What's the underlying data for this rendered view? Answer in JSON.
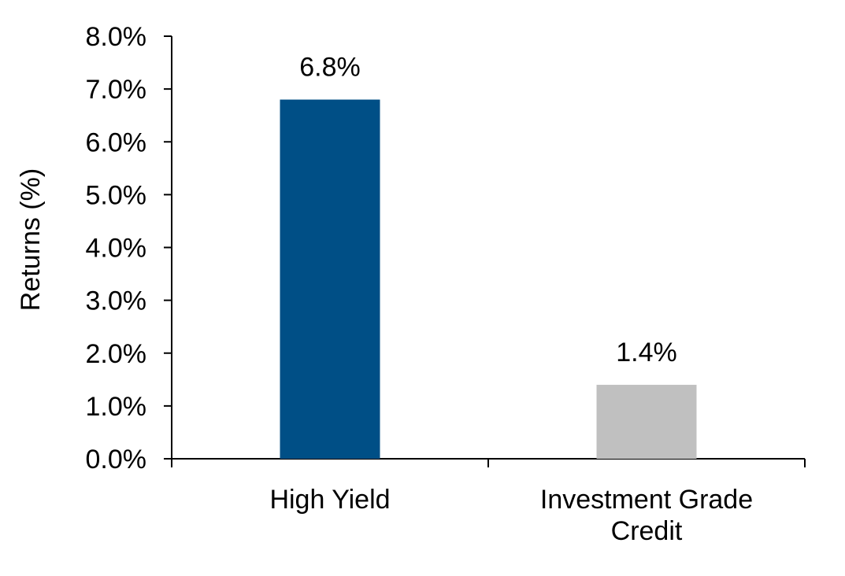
{
  "chart_data": {
    "type": "bar",
    "categories": [
      [
        "High Yield"
      ],
      [
        "Investment Grade",
        "Credit"
      ]
    ],
    "values": [
      6.8,
      1.4
    ],
    "data_labels": [
      "6.8%",
      "1.4%"
    ],
    "colors": [
      "#004f86",
      "#c0c0c0"
    ],
    "ylabel": "Returns (%)",
    "ylim": [
      0,
      8
    ],
    "yticks": [
      0,
      1,
      2,
      3,
      4,
      5,
      6,
      7,
      8
    ],
    "ytick_labels": [
      "0.0%",
      "1.0%",
      "2.0%",
      "3.0%",
      "4.0%",
      "5.0%",
      "6.0%",
      "7.0%",
      "8.0%"
    ],
    "grid": false,
    "legend": "none"
  }
}
